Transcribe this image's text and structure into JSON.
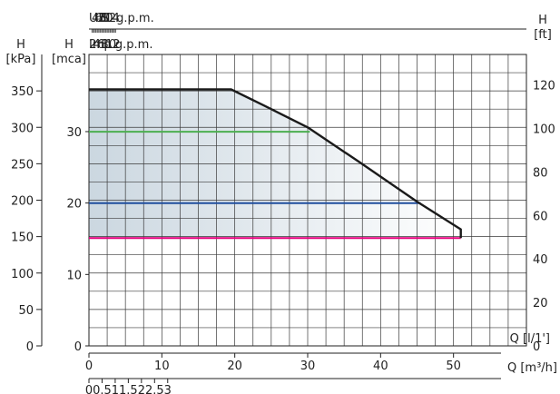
{
  "chart_data": {
    "type": "area",
    "title": "",
    "subtitle": "",
    "x_axes": {
      "us_gpm": {
        "label": "U.S. g.p.m.",
        "ticks": [
          "4",
          "6",
          "8",
          "10",
          "12",
          "14"
        ]
      },
      "imp_gpm": {
        "label": "Imp g.p.m.",
        "ticks": [
          "2",
          "4",
          "6",
          "8",
          "10",
          "12"
        ]
      },
      "q_l_per_min": {
        "label": "Q [l/1']"
      },
      "q_m3h": {
        "label": "Q [m³/h]",
        "ticks": [
          "0",
          "10",
          "20",
          "30",
          "40",
          "50"
        ],
        "range": [
          0,
          60
        ]
      },
      "q_l_per_s": {
        "label": "",
        "ticks": [
          "0",
          "0.5",
          "1",
          "1.5",
          "2",
          "2.5",
          "3"
        ]
      }
    },
    "y_axes": {
      "kpa": {
        "header": [
          "H",
          "[kPa]"
        ],
        "ticks": [
          "0",
          "50",
          "100",
          "150",
          "200",
          "250",
          "300",
          "350"
        ],
        "range": [
          0,
          400
        ]
      },
      "mca": {
        "header": [
          "H",
          "[mca]"
        ],
        "ticks": [
          "0",
          "10",
          "20",
          "30"
        ],
        "range": [
          0,
          40.8
        ]
      },
      "ft": {
        "header": [
          "H",
          "[ft]"
        ],
        "ticks": [
          "0",
          "20",
          "40",
          "60",
          "80",
          "100",
          "120"
        ],
        "range": [
          0,
          134
        ]
      }
    },
    "envelope": {
      "color": "#1a1a1a",
      "x": [
        0,
        19.5,
        24,
        30,
        37,
        45,
        51,
        51
      ],
      "y": [
        352,
        352,
        330,
        300,
        253,
        198,
        160,
        148
      ]
    },
    "series": [
      {
        "color": "#4caf50",
        "x": [
          0,
          30.3
        ],
        "y": [
          294,
          294
        ]
      },
      {
        "color": "#1f4e9e",
        "x": [
          0,
          45.5
        ],
        "y": [
          196,
          196
        ]
      },
      {
        "color": "#e6007e",
        "x": [
          0,
          51
        ],
        "y": [
          148,
          148
        ]
      }
    ],
    "fill": {
      "from": "#cbd7e0",
      "to": "#ffffff"
    },
    "grid": true,
    "legend": "none"
  }
}
